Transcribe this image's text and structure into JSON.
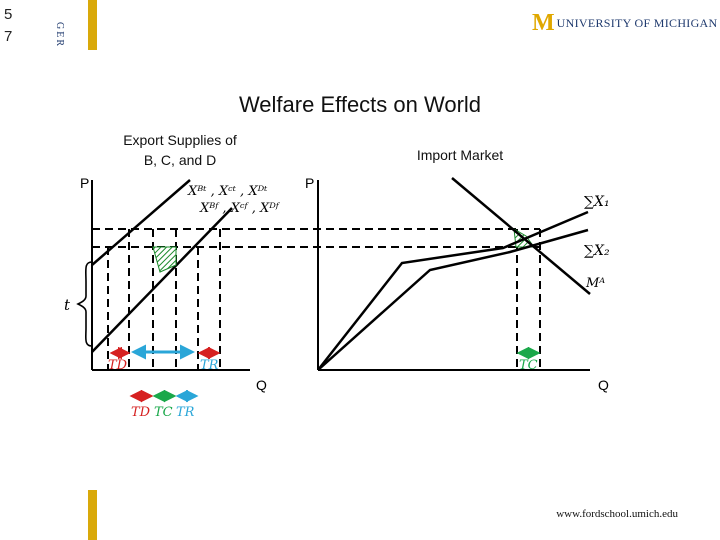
{
  "slide_number": "5\n7",
  "side_tag": "GER",
  "logo": {
    "mark": "M",
    "text": "UNIVERSITY OF MICHIGAN"
  },
  "title": "Welfare Effects on World",
  "left_panel": {
    "caption_line1": "Export Supplies of",
    "caption_line2": "B, C, and D",
    "y_axis_label": "P",
    "x_axis_label": "Q",
    "tariff_label": "t"
  },
  "right_panel": {
    "caption": "Import Market",
    "y_axis_label": "P",
    "x_axis_label": "Q"
  },
  "curve_labels": {
    "supply_top": "Xᴮᵗ , Xᶜᵗ , Xᴰᵗ",
    "supply_bottom": "Xᴮᶠ , Xᶜᶠ , Xᴰᶠ",
    "sum_x1": "∑X₁",
    "sum_x2": "∑X₂",
    "import_demand": "Mᴬ"
  },
  "arrow_labels": {
    "td_left": "TD",
    "tr_left": "TR",
    "tc_right": "TC",
    "bottom_td": "TD",
    "bottom_tc": "TC",
    "bottom_tr": "TR"
  },
  "colors": {
    "accent_gold": "#d9a90a",
    "navy": "#1f3a6e",
    "td_red": "#d62020",
    "tr_blue": "#2aa6d8",
    "tc_green": "#1aa84a",
    "hatch_green": "#1a8a2a"
  },
  "footer": "www.fordschool.umich.edu"
}
